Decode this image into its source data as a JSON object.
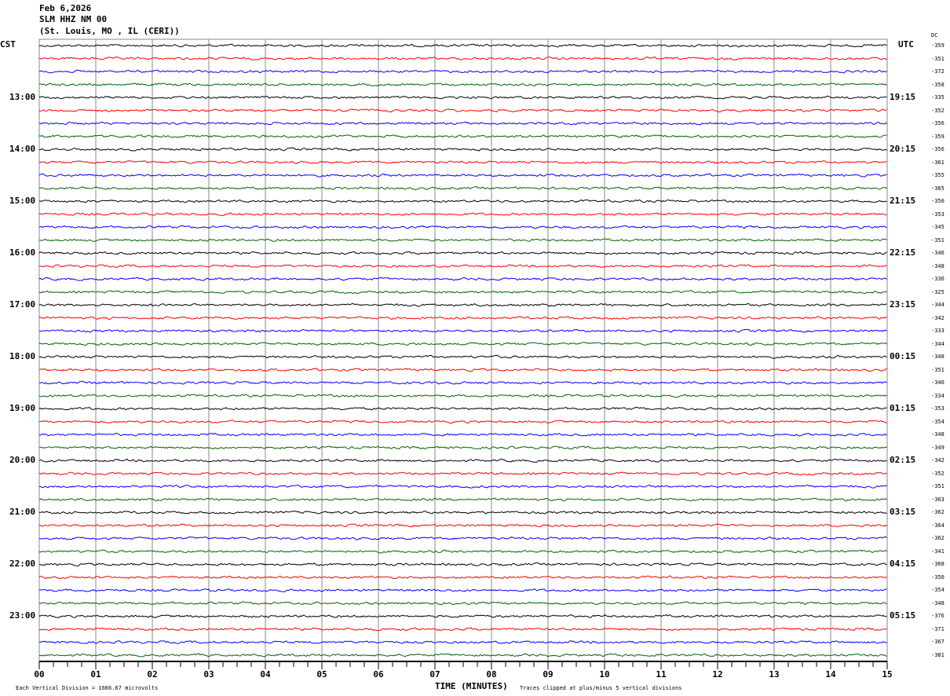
{
  "header": {
    "date": "Feb 6,2026",
    "station": "SLM HHZ NM 00",
    "location": "(St. Louis, MO , IL (CERI))"
  },
  "left_timezone": "CST",
  "right_timezone": "UTC",
  "dc_header": "DC",
  "footer": {
    "scale_note": "Each Vertical Division = 1666.67 microvolts",
    "xlabel": "TIME (MINUTES)",
    "clip_note": "Traces clipped at plus/minus 5 vertical divisions"
  },
  "colors": {
    "trace_cycle": [
      "#000000",
      "#ff0000",
      "#0000ff",
      "#006400"
    ],
    "grid": "#888888"
  },
  "chart_data": {
    "type": "line",
    "title": "SLM HHZ NM 00",
    "xlabel": "TIME (MINUTES)",
    "xlim": [
      0,
      15
    ],
    "x_ticks": [
      "00",
      "01",
      "02",
      "03",
      "04",
      "05",
      "06",
      "07",
      "08",
      "09",
      "10",
      "11",
      "12",
      "13",
      "14",
      "15"
    ],
    "rows_per_hour": 4,
    "minutes_per_row": 15,
    "left_labels": [
      {
        "row": 4,
        "text": "13:00"
      },
      {
        "row": 8,
        "text": "14:00"
      },
      {
        "row": 12,
        "text": "15:00"
      },
      {
        "row": 16,
        "text": "16:00"
      },
      {
        "row": 20,
        "text": "17:00"
      },
      {
        "row": 24,
        "text": "18:00"
      },
      {
        "row": 28,
        "text": "19:00"
      },
      {
        "row": 32,
        "text": "20:00"
      },
      {
        "row": 36,
        "text": "21:00"
      },
      {
        "row": 40,
        "text": "22:00"
      },
      {
        "row": 44,
        "text": "23:00"
      }
    ],
    "right_labels": [
      {
        "row": 4,
        "text": "19:15"
      },
      {
        "row": 8,
        "text": "20:15"
      },
      {
        "row": 12,
        "text": "21:15"
      },
      {
        "row": 16,
        "text": "22:15"
      },
      {
        "row": 20,
        "text": "23:15"
      },
      {
        "row": 24,
        "text": "00:15"
      },
      {
        "row": 28,
        "text": "01:15"
      },
      {
        "row": 32,
        "text": "02:15"
      },
      {
        "row": 36,
        "text": "03:15"
      },
      {
        "row": 40,
        "text": "04:15"
      },
      {
        "row": 44,
        "text": "05:15"
      }
    ],
    "dc_offsets": [
      -359,
      -351,
      -372,
      -358,
      -335,
      -352,
      -356,
      -359,
      -356,
      -361,
      -355,
      -365,
      -350,
      -353,
      -345,
      -351,
      -346,
      -348,
      -336,
      -325,
      -344,
      -342,
      -333,
      -344,
      -348,
      -351,
      -340,
      -334,
      -353,
      -354,
      -348,
      -349,
      -342,
      -352,
      -351,
      -363,
      -362,
      -364,
      -362,
      -341,
      -368,
      -350,
      -354,
      -348,
      -376,
      -371,
      -367,
      -381
    ]
  }
}
